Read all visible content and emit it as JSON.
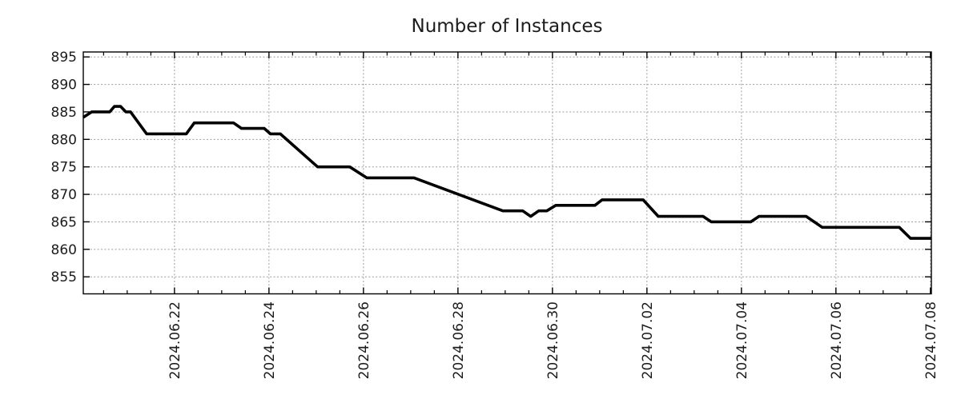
{
  "chart": {
    "title": "Number of Instances"
  },
  "chart_data": {
    "type": "line",
    "title": "Number of Instances",
    "x_axis": {
      "kind": "date",
      "tick_labels": [
        "2024.06.22",
        "2024.06.24",
        "2024.06.26",
        "2024.06.28",
        "2024.06.30",
        "2024.07.02",
        "2024.07.04",
        "2024.07.06",
        "2024.07.08"
      ],
      "tick_positions_days": [
        0,
        2,
        4,
        6,
        8,
        10,
        12,
        14,
        16
      ],
      "minor_tick_step_days": 0.5,
      "range_days": [
        -1.93,
        16.02
      ],
      "origin": "2024.06.22"
    },
    "y_axis": {
      "ticks": [
        855,
        860,
        865,
        870,
        875,
        880,
        885,
        890,
        895
      ],
      "range": [
        851.9,
        895.9
      ]
    },
    "grid": true,
    "legend": false,
    "series": [
      {
        "name": "instances",
        "color": "#000000",
        "points": [
          [
            -1.93,
            884
          ],
          [
            -1.75,
            885
          ],
          [
            -1.37,
            885
          ],
          [
            -1.27,
            886
          ],
          [
            -1.14,
            886
          ],
          [
            -1.03,
            885
          ],
          [
            -0.93,
            885
          ],
          [
            -0.59,
            881
          ],
          [
            0.25,
            881
          ],
          [
            0.42,
            883
          ],
          [
            1.25,
            883
          ],
          [
            1.42,
            882
          ],
          [
            1.9,
            882
          ],
          [
            2.03,
            881
          ],
          [
            2.24,
            881
          ],
          [
            3.03,
            875
          ],
          [
            3.71,
            875
          ],
          [
            4.07,
            873
          ],
          [
            5.07,
            873
          ],
          [
            6.95,
            867
          ],
          [
            7.37,
            867
          ],
          [
            7.54,
            866
          ],
          [
            7.71,
            867
          ],
          [
            7.88,
            867
          ],
          [
            8.07,
            868
          ],
          [
            8.9,
            868
          ],
          [
            9.05,
            869
          ],
          [
            9.92,
            869
          ],
          [
            10.24,
            866
          ],
          [
            11.19,
            866
          ],
          [
            11.36,
            865
          ],
          [
            12.2,
            865
          ],
          [
            12.37,
            866
          ],
          [
            13.37,
            866
          ],
          [
            13.71,
            864
          ],
          [
            15.34,
            864
          ],
          [
            15.58,
            862
          ],
          [
            16.02,
            862
          ]
        ]
      }
    ],
    "styles": {
      "line_color": "#000000",
      "line_width": 3.6,
      "grid_color": "#9c9c9c",
      "grid_dash": "2 2.4",
      "axis_color": "#000000",
      "text_color": "#1c1c1c",
      "background": "#ffffff"
    }
  }
}
